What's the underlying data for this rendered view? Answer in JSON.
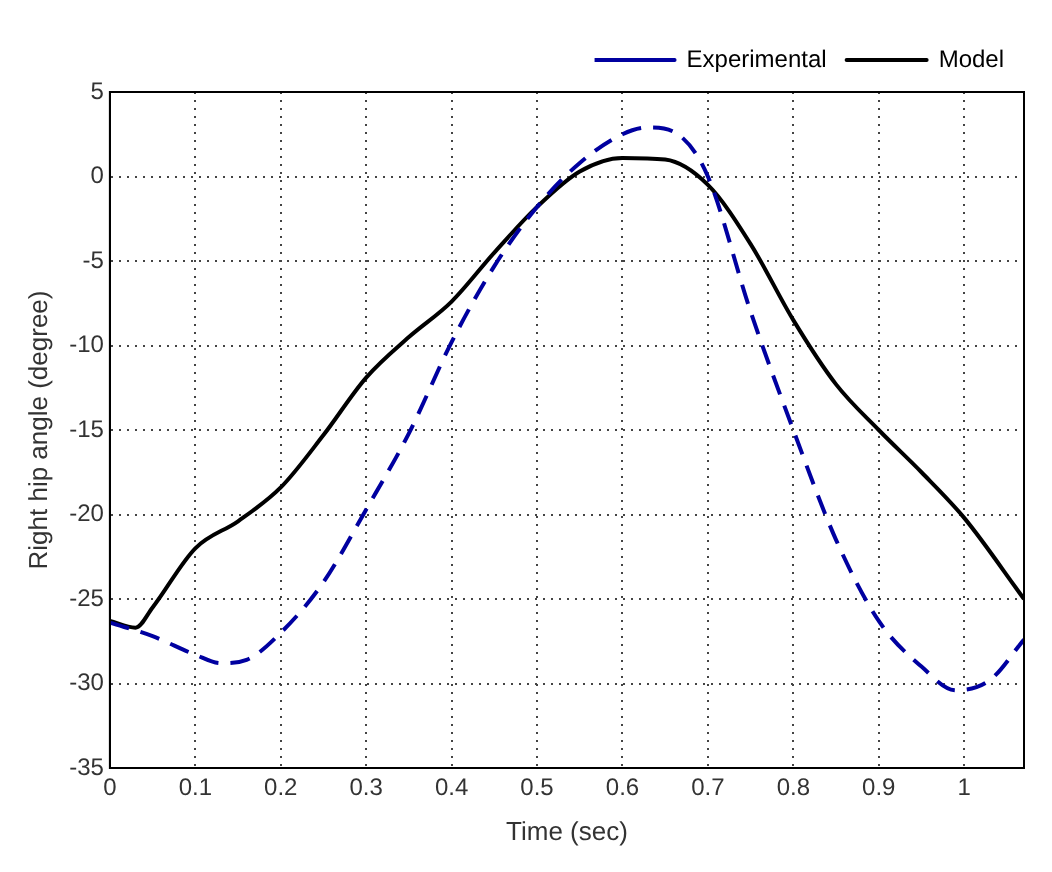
{
  "chart_data": {
    "type": "line",
    "xlabel": "Time (sec)",
    "ylabel": "Right hip angle (degree)",
    "xlim": [
      0,
      1.07
    ],
    "xticks": [
      0,
      0.1,
      0.2,
      0.3,
      0.4,
      0.5,
      0.6,
      0.7,
      0.8,
      0.9,
      1
    ],
    "ylim": [
      -35,
      5
    ],
    "yticks": [
      -35,
      -30,
      -25,
      -20,
      -15,
      -10,
      -5,
      0,
      5
    ],
    "grid": true,
    "legend": "top right",
    "series": [
      {
        "name": "Experimental",
        "color": "#0000a0",
        "line_style": "dashed",
        "x": [
          0,
          0.05,
          0.1,
          0.13,
          0.16,
          0.2,
          0.25,
          0.3,
          0.35,
          0.4,
          0.45,
          0.5,
          0.55,
          0.6,
          0.63,
          0.67,
          0.7,
          0.75,
          0.8,
          0.85,
          0.9,
          0.95,
          0.99,
          1.03,
          1.07
        ],
        "values": [
          -26.4,
          -27.2,
          -28.3,
          -28.8,
          -28.6,
          -27,
          -24,
          -19.7,
          -15.2,
          -9.8,
          -5.3,
          -1.8,
          0.8,
          2.5,
          2.9,
          2.3,
          0,
          -8,
          -15,
          -21.5,
          -26.3,
          -29,
          -30.4,
          -29.8,
          -27.4
        ]
      },
      {
        "name": "Model",
        "color": "#000000",
        "line_style": "solid",
        "x": [
          0,
          0.03,
          0.05,
          0.1,
          0.15,
          0.2,
          0.25,
          0.3,
          0.35,
          0.4,
          0.45,
          0.5,
          0.55,
          0.6,
          0.65,
          0.7,
          0.75,
          0.8,
          0.85,
          0.9,
          0.95,
          1,
          1.07
        ],
        "values": [
          -26.3,
          -26.7,
          -25.5,
          -22,
          -20.4,
          -18.4,
          -15.3,
          -11.9,
          -9.5,
          -7.4,
          -4.5,
          -1.8,
          0.3,
          1.1,
          1,
          -0.5,
          -4,
          -8.5,
          -12.3,
          -15,
          -17.5,
          -20.2,
          -25
        ]
      }
    ]
  }
}
